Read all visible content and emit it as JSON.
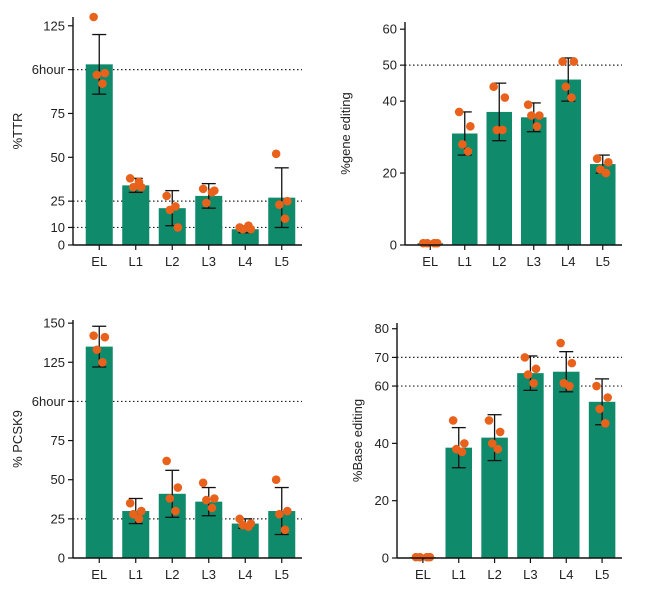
{
  "colors": {
    "bar": "#0f8a6a",
    "point": "#e8621c",
    "axis": "#111111",
    "error": "#111111"
  },
  "chart_data": [
    {
      "type": "bar",
      "ylabel": "%TTR",
      "categories": [
        "EL",
        "L1",
        "L2",
        "L3",
        "L4",
        "L5"
      ],
      "values": [
        103,
        34,
        21,
        28,
        9,
        27
      ],
      "error": [
        17,
        4,
        10,
        7,
        2,
        17
      ],
      "points": [
        [
          130,
          98,
          97,
          92
        ],
        [
          38,
          33,
          33,
          36
        ],
        [
          28,
          10,
          20,
          22
        ],
        [
          32,
          31,
          24,
          30
        ],
        [
          10,
          9,
          9,
          11
        ],
        [
          52,
          25,
          23,
          15
        ]
      ],
      "ylim": [
        0,
        130
      ],
      "yticks": [
        0,
        10,
        25,
        50,
        75,
        125
      ],
      "ytick_labels": [
        "0",
        "10",
        "25",
        "50",
        "75",
        "125"
      ],
      "reference_lines": [
        {
          "value": 100,
          "label": "6hour"
        },
        {
          "value": 25,
          "label": ""
        },
        {
          "value": 10,
          "label": ""
        }
      ]
    },
    {
      "type": "bar",
      "ylabel": "%gene editing",
      "categories": [
        "EL",
        "L1",
        "L2",
        "L3",
        "L4",
        "L5"
      ],
      "values": [
        0.5,
        31,
        37,
        35.5,
        46,
        22.5
      ],
      "error": [
        0.3,
        6,
        8,
        4,
        6,
        2.5
      ],
      "points": [
        [
          0.5,
          0.5,
          0.5,
          0.5
        ],
        [
          37,
          33,
          28,
          26
        ],
        [
          44,
          41,
          32,
          32
        ],
        [
          39,
          36,
          36,
          33
        ],
        [
          51,
          51,
          44,
          41
        ],
        [
          24,
          23,
          21,
          20
        ]
      ],
      "ylim": [
        0,
        62
      ],
      "yticks": [
        0,
        20,
        40,
        50,
        60
      ],
      "ytick_labels": [
        "0",
        "20",
        "40",
        "50",
        "60"
      ],
      "reference_lines": [
        {
          "value": 50,
          "label": ""
        }
      ]
    },
    {
      "type": "bar",
      "ylabel": "% PCSK9",
      "categories": [
        "EL",
        "L1",
        "L2",
        "L3",
        "L4",
        "L5"
      ],
      "values": [
        135,
        30,
        41,
        36,
        22,
        30
      ],
      "error": [
        13,
        8,
        15,
        9,
        3,
        15
      ],
      "points": [
        [
          142,
          141,
          133,
          125
        ],
        [
          35,
          30,
          28,
          25
        ],
        [
          62,
          45,
          38,
          30
        ],
        [
          48,
          38,
          37,
          32
        ],
        [
          25,
          22,
          21,
          20
        ],
        [
          50,
          30,
          28,
          18
        ]
      ],
      "ylim": [
        0,
        152
      ],
      "yticks": [
        0,
        25,
        50,
        75,
        125,
        150
      ],
      "ytick_labels": [
        "0",
        "25",
        "50",
        "75",
        "125",
        "150"
      ],
      "reference_lines": [
        {
          "value": 100,
          "label": "6hour"
        },
        {
          "value": 25,
          "label": ""
        }
      ]
    },
    {
      "type": "bar",
      "ylabel": "%Base editing",
      "categories": [
        "EL",
        "L1",
        "L2",
        "L3",
        "L4",
        "L5"
      ],
      "values": [
        0.3,
        38.5,
        42,
        64.5,
        65,
        54.5
      ],
      "error": [
        0.2,
        7,
        8,
        6,
        7,
        8
      ],
      "points": [
        [
          0.3,
          0.3,
          0.3,
          0.3
        ],
        [
          48,
          40,
          38,
          37
        ],
        [
          48,
          44,
          40,
          38
        ],
        [
          70,
          66,
          64,
          61
        ],
        [
          75,
          68,
          61,
          60
        ],
        [
          60,
          56,
          52,
          47
        ]
      ],
      "ylim": [
        0,
        82
      ],
      "yticks": [
        0,
        20,
        40,
        60,
        70,
        80
      ],
      "ytick_labels": [
        "0",
        "20",
        "40",
        "60",
        "70",
        "80"
      ],
      "reference_lines": [
        {
          "value": 70,
          "label": ""
        },
        {
          "value": 60,
          "label": ""
        }
      ]
    }
  ]
}
